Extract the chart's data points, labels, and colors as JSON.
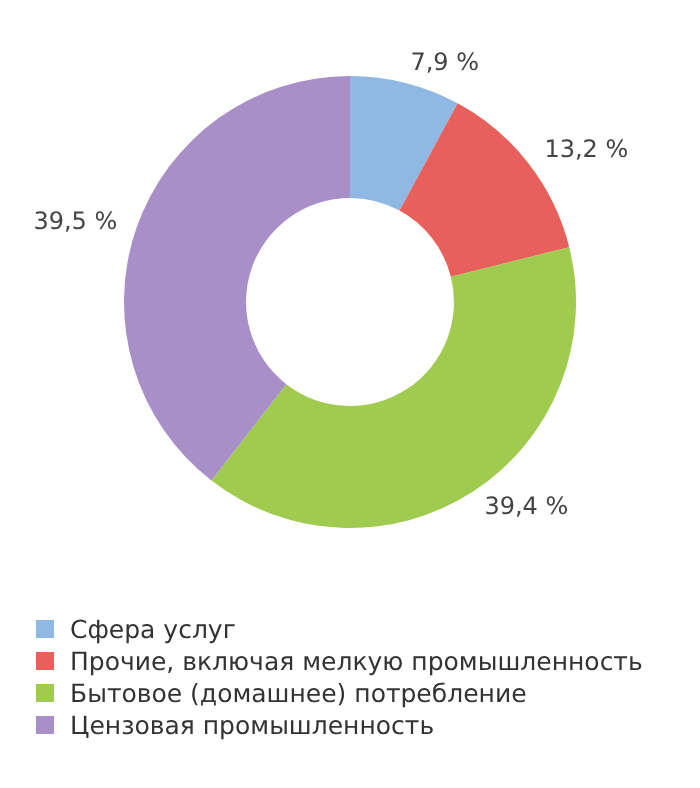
{
  "chart_data": {
    "type": "donut",
    "categories": [
      "Сфера услуг",
      "Прочие, включая мелкую промышленность",
      "Бытовое (домашнее) потребление",
      "Цензовая промышленность"
    ],
    "values": [
      7.9,
      13.2,
      39.4,
      39.5
    ],
    "value_labels": [
      "7,9 %",
      "13,2 %",
      "39,4 %",
      "39,5 %"
    ],
    "colors": [
      "#8fb8e3",
      "#e8605c",
      "#9fcc4e",
      "#a88fc8"
    ],
    "legend": "bottom"
  }
}
